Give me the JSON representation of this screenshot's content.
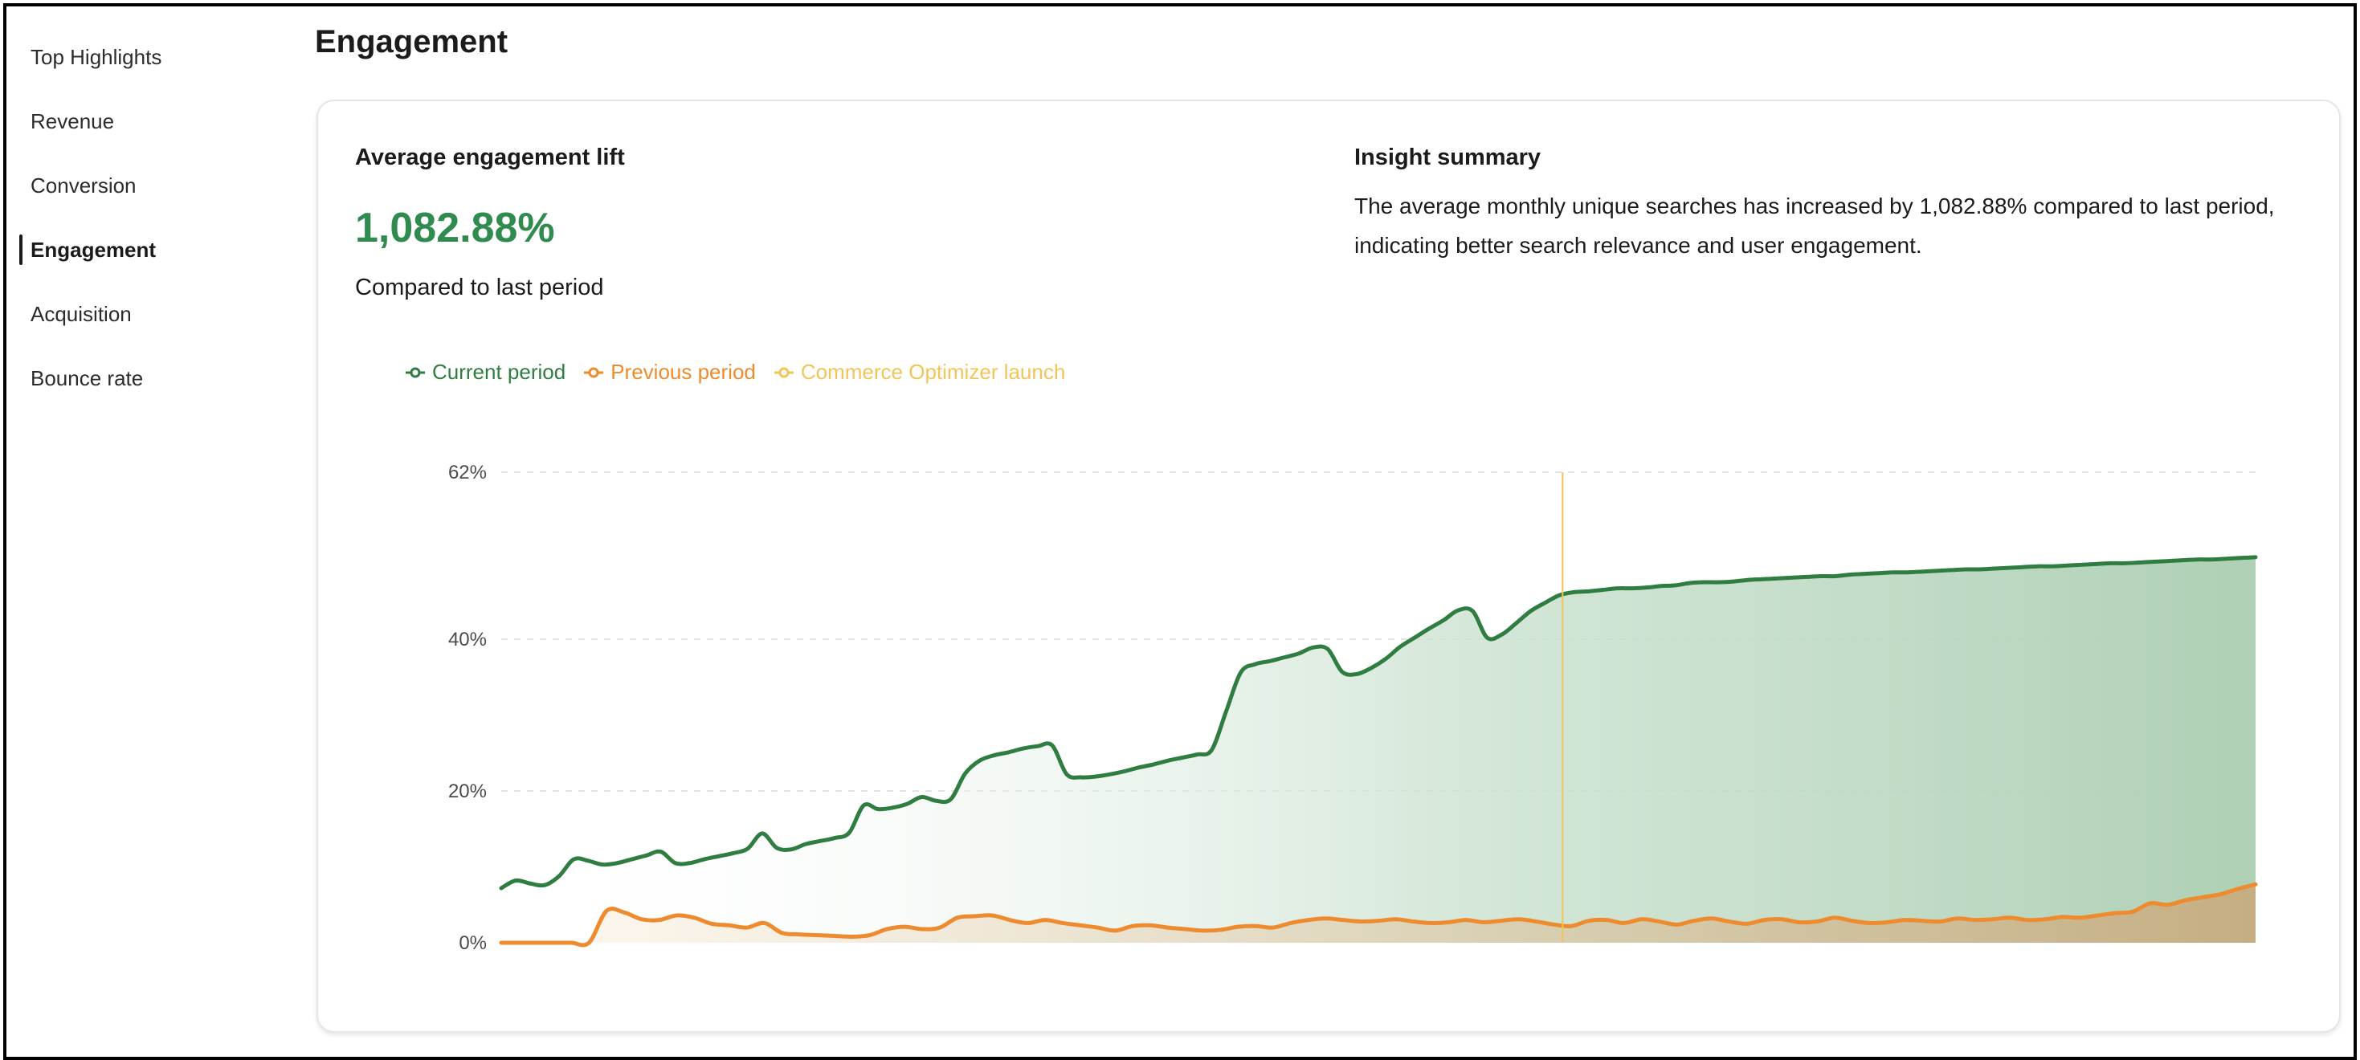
{
  "sidebar": {
    "items": [
      {
        "label": "Top Highlights",
        "active": false
      },
      {
        "label": "Revenue",
        "active": false
      },
      {
        "label": "Conversion",
        "active": false
      },
      {
        "label": "Engagement",
        "active": true
      },
      {
        "label": "Acquisition",
        "active": false
      },
      {
        "label": "Bounce rate",
        "active": false
      }
    ]
  },
  "page": {
    "title": "Engagement"
  },
  "card": {
    "metric": {
      "title": "Average engagement lift",
      "value": "1,082.88%",
      "subtitle": "Compared to last period"
    },
    "insight": {
      "title": "Insight summary",
      "text": "The average monthly unique searches has increased by 1,082.88% compared to last period, indicating better search relevance and user engagement."
    }
  },
  "colors": {
    "current": "#2f7d40",
    "previous": "#ee8b2e",
    "launch": "#f2c45a",
    "value_green": "#2f8b4e"
  },
  "chart_data": {
    "type": "area",
    "legend_position": "top-left",
    "grid": true,
    "ylim": [
      0,
      62
    ],
    "y_ticks": [
      {
        "value": 0,
        "label": "0%"
      },
      {
        "value": 20,
        "label": "20%"
      },
      {
        "value": 40,
        "label": "40%"
      },
      {
        "value": 62,
        "label": "62%"
      }
    ],
    "launch_marker_x": 0.605,
    "series": [
      {
        "name": "Current period",
        "key": "current",
        "values": [
          7.2,
          8.2,
          7.8,
          7.6,
          8.8,
          11.0,
          10.8,
          10.3,
          10.5,
          11.0,
          11.5,
          12.0,
          10.5,
          10.5,
          11.0,
          11.4,
          11.8,
          12.4,
          14.4,
          12.5,
          12.3,
          13.0,
          13.4,
          13.8,
          14.5,
          18.1,
          17.6,
          17.8,
          18.3,
          19.2,
          18.7,
          18.9,
          22.3,
          24.0,
          24.7,
          25.1,
          25.6,
          25.9,
          26.0,
          22.2,
          21.8,
          21.9,
          22.2,
          22.6,
          23.1,
          23.5,
          24.0,
          24.4,
          24.8,
          25.4,
          30.5,
          35.6,
          36.7,
          37.1,
          37.6,
          38.1,
          38.9,
          38.7,
          35.7,
          35.4,
          36.2,
          37.4,
          39.0,
          40.2,
          41.4,
          42.5,
          43.8,
          43.7,
          40.2,
          40.6,
          42.1,
          43.7,
          44.8,
          45.8,
          46.2,
          46.3,
          46.5,
          46.7,
          46.7,
          46.8,
          47.0,
          47.1,
          47.4,
          47.5,
          47.5,
          47.6,
          47.8,
          47.9,
          48.0,
          48.1,
          48.2,
          48.3,
          48.3,
          48.5,
          48.6,
          48.7,
          48.8,
          48.8,
          48.9,
          49.0,
          49.1,
          49.2,
          49.2,
          49.3,
          49.4,
          49.5,
          49.6,
          49.6,
          49.7,
          49.8,
          49.9,
          50.0,
          50.0,
          50.1,
          50.2,
          50.3,
          50.4,
          50.5,
          50.5,
          50.6,
          50.7,
          50.8
        ]
      },
      {
        "name": "Previous period",
        "key": "previous",
        "values": [
          0,
          0,
          0,
          0,
          0,
          0,
          4.2,
          4.0,
          3.1,
          3.0,
          3.6,
          3.3,
          2.5,
          2.3,
          2.0,
          2.6,
          1.3,
          1.1,
          1.0,
          0.9,
          0.8,
          1.0,
          1.8,
          2.1,
          1.8,
          2.0,
          3.3,
          3.5,
          3.6,
          3.0,
          2.6,
          3.0,
          2.6,
          2.3,
          2.0,
          1.6,
          2.2,
          2.3,
          2.0,
          1.8,
          1.6,
          1.7,
          2.1,
          2.2,
          2.0,
          2.6,
          3.0,
          3.2,
          3.0,
          2.8,
          2.9,
          3.1,
          2.8,
          2.6,
          2.7,
          3.0,
          2.7,
          2.9,
          3.1,
          2.8,
          2.4,
          2.2,
          2.9,
          3.0,
          2.6,
          3.1,
          2.8,
          2.4,
          2.9,
          3.2,
          2.8,
          2.5,
          3.0,
          3.1,
          2.7,
          2.8,
          3.3,
          2.9,
          2.6,
          2.7,
          3.0,
          2.9,
          2.8,
          3.2,
          3.0,
          3.1,
          3.3,
          3.0,
          3.1,
          3.4,
          3.3,
          3.6,
          3.9,
          4.1,
          5.2,
          5.0,
          5.6,
          6.0,
          6.4,
          7.1,
          7.7
        ]
      }
    ],
    "annotations": [
      {
        "name": "Commerce Optimizer launch",
        "key": "launch"
      }
    ]
  }
}
